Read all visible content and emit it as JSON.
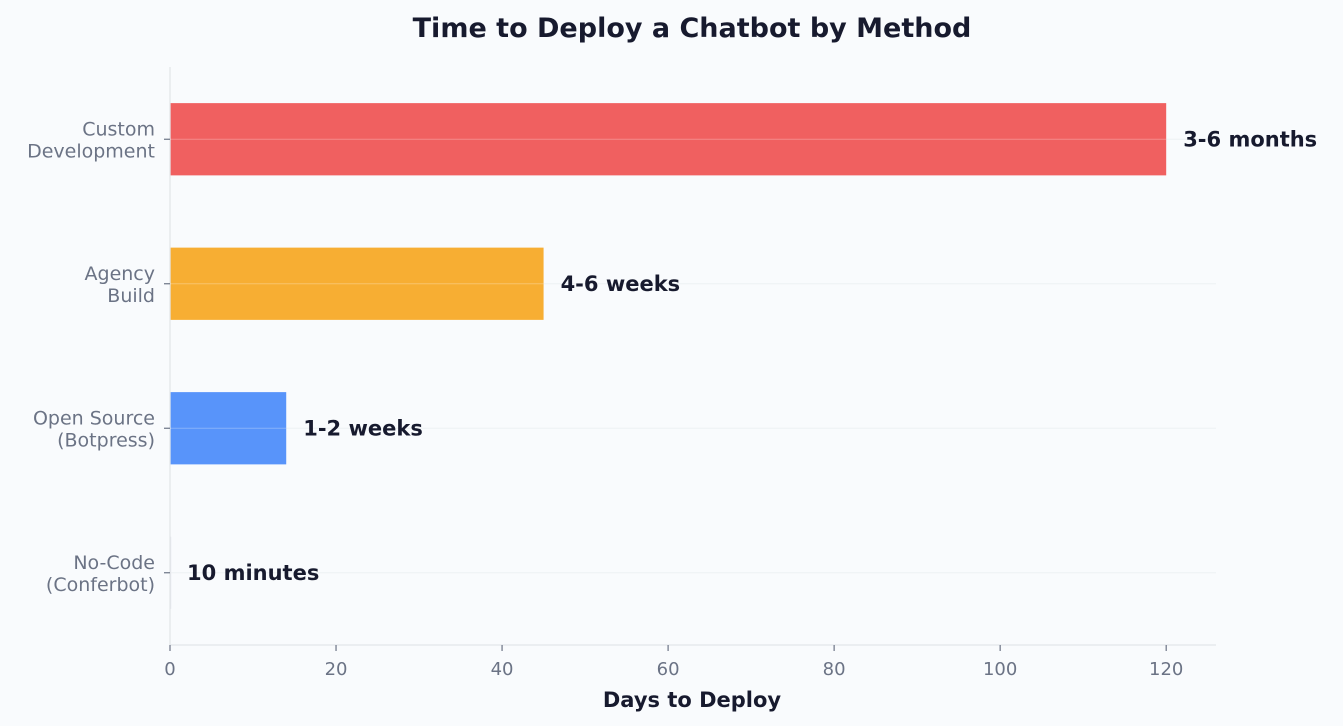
{
  "chart_data": {
    "type": "bar",
    "orientation": "horizontal",
    "title": "Time to Deploy a Chatbot by Method",
    "xlabel": "Days to Deploy",
    "ylabel": "",
    "xlim": [
      0,
      126
    ],
    "xticks": [
      0,
      20,
      40,
      60,
      80,
      100,
      120
    ],
    "grid": "y",
    "categories": [
      [
        "Custom",
        "Development"
      ],
      [
        "Agency",
        "Build"
      ],
      [
        "Open Source",
        "(Botpress)"
      ],
      [
        "No-Code",
        "(Conferbot)"
      ]
    ],
    "values": [
      120,
      45,
      14,
      0.007
    ],
    "data_labels": [
      "3-6 months",
      "4-6 weeks",
      "1-2 weeks",
      "10 minutes"
    ],
    "colors": [
      "#f06060",
      "#f7ae33",
      "#5894fa",
      "#e3e6ea"
    ]
  }
}
